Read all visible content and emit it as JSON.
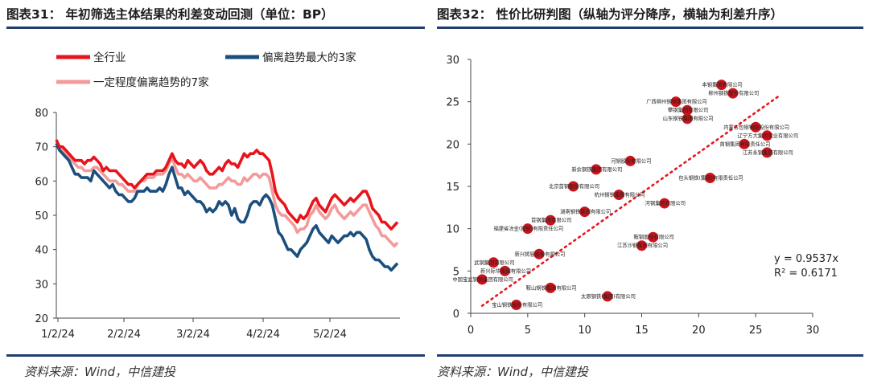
{
  "left": {
    "title": "图表31：  年初筛选主体结果的利差变动回测（单位：BP）",
    "source": "资料来源：Wind，中信建投",
    "chart_data": {
      "type": "line",
      "ylim": [
        20,
        80
      ],
      "yticks": [
        "80",
        "70",
        "60",
        "50",
        "40",
        "30",
        "20"
      ],
      "xticks": [
        "1/2/24",
        "2/2/24",
        "3/2/24",
        "4/2/24",
        "5/2/24"
      ],
      "xlabel": "",
      "ylabel": "",
      "legend_placement": "top",
      "series": [
        {
          "name": "全行业",
          "color": "#e8141c",
          "values": [
            72,
            70,
            70,
            69,
            68,
            67,
            66,
            66,
            66,
            65,
            66,
            66,
            67,
            66,
            65,
            63,
            64,
            63,
            63,
            63,
            62,
            61,
            60,
            59,
            59,
            58,
            59,
            60,
            61,
            62,
            62,
            62,
            63,
            63,
            63,
            64,
            66,
            68,
            66,
            65,
            65,
            64,
            66,
            65,
            64,
            65,
            66,
            65,
            63,
            62,
            62,
            63,
            64,
            63,
            65,
            66,
            65,
            65,
            64,
            66,
            68,
            67,
            68,
            68,
            69,
            68,
            68,
            67,
            66,
            62,
            57,
            55,
            54,
            53,
            51,
            50,
            49,
            48,
            50,
            49,
            50,
            52,
            54,
            55,
            53,
            52,
            51,
            53,
            55,
            56,
            55,
            54,
            53,
            54,
            55,
            54,
            55,
            56,
            57,
            57,
            55,
            52,
            51,
            50,
            48,
            48,
            47,
            46,
            47,
            48
          ]
        },
        {
          "name": "偏离趋势最大的3家",
          "color": "#1b4f7d",
          "values": [
            71,
            69,
            68,
            67,
            66,
            64,
            62,
            62,
            61,
            61,
            61,
            60,
            63,
            62,
            61,
            60,
            59,
            58,
            59,
            57,
            56,
            56,
            55,
            54,
            54,
            55,
            57,
            57,
            57,
            58,
            57,
            57,
            57,
            58,
            57,
            59,
            62,
            64,
            61,
            58,
            58,
            56,
            57,
            56,
            55,
            54,
            54,
            53,
            51,
            52,
            51,
            52,
            54,
            53,
            54,
            53,
            50,
            52,
            49,
            48,
            48,
            50,
            53,
            54,
            54,
            53,
            55,
            56,
            55,
            53,
            49,
            45,
            44,
            42,
            40,
            40,
            39,
            38,
            40,
            41,
            42,
            44,
            46,
            47,
            45,
            44,
            43,
            42,
            44,
            43,
            42,
            43,
            44,
            44,
            45,
            44,
            45,
            45,
            44,
            43,
            40,
            38,
            37,
            37,
            36,
            35,
            35,
            34,
            35,
            36
          ]
        },
        {
          "name": "一定程度偏离趋势的7家",
          "color": "#f49a9a",
          "values": [
            71,
            70,
            69,
            68,
            67,
            66,
            65,
            64,
            64,
            63,
            63,
            63,
            64,
            64,
            63,
            62,
            61,
            60,
            60,
            60,
            59,
            59,
            58,
            57,
            57,
            57,
            59,
            60,
            60,
            61,
            61,
            61,
            62,
            62,
            62,
            63,
            65,
            67,
            64,
            62,
            62,
            61,
            62,
            61,
            60,
            60,
            61,
            60,
            59,
            58,
            58,
            58,
            59,
            59,
            60,
            61,
            60,
            60,
            59,
            59,
            61,
            60,
            61,
            62,
            62,
            61,
            62,
            62,
            61,
            57,
            53,
            51,
            50,
            50,
            49,
            48,
            47,
            45,
            46,
            46,
            47,
            50,
            51,
            53,
            51,
            50,
            49,
            50,
            52,
            53,
            51,
            50,
            49,
            50,
            51,
            50,
            51,
            52,
            53,
            53,
            51,
            49,
            47,
            46,
            44,
            44,
            43,
            42,
            41,
            42
          ]
        }
      ]
    }
  },
  "right": {
    "title": "图表32：  性价比研判图（纵轴为评分降序，横轴为利差升序）",
    "source": "资料来源：Wind，中信建投",
    "chart_data": {
      "type": "scatter",
      "xlim": [
        0,
        30
      ],
      "ylim": [
        0,
        30
      ],
      "xticks": [
        "0",
        "5",
        "10",
        "15",
        "20",
        "25",
        "30"
      ],
      "yticks": [
        "30",
        "25",
        "20",
        "15",
        "10",
        "5",
        "0"
      ],
      "xlabel": "",
      "ylabel": "",
      "grid": false,
      "point_color": "#c8141c",
      "points": [
        {
          "x": 22,
          "y": 27,
          "label": "本钢集团有限公司"
        },
        {
          "x": 23,
          "y": 26,
          "label": "柳州钢铁股份有限公司"
        },
        {
          "x": 18,
          "y": 25,
          "label": "广西柳州钢铁集团有限公司"
        },
        {
          "x": 19,
          "y": 24,
          "label": "攀钢集团有限公司"
        },
        {
          "x": 19,
          "y": 23,
          "label": "山东钢铁集团有限公司"
        },
        {
          "x": 25,
          "y": 22,
          "label": "内蒙古包钢钢联股份有限公司"
        },
        {
          "x": 26,
          "y": 21,
          "label": "辽宁方大集团实业有限公司"
        },
        {
          "x": 24,
          "y": 20,
          "label": "首钢集团有限责任公司"
        },
        {
          "x": 26,
          "y": 19,
          "label": "江苏永钢集团有限公司"
        },
        {
          "x": 14,
          "y": 18,
          "label": "河钢股份有限公司"
        },
        {
          "x": 11,
          "y": 17,
          "label": "新余钢铁集团有限公司"
        },
        {
          "x": 21,
          "y": 16,
          "label": "包头钢铁(集团)有限责任公司"
        },
        {
          "x": 9,
          "y": 15,
          "label": "北京首钢股份有限公司"
        },
        {
          "x": 13,
          "y": 14,
          "label": "杭州钢铁集团有限公司"
        },
        {
          "x": 17,
          "y": 13,
          "label": "河钢集团有限公司"
        },
        {
          "x": 10,
          "y": 12,
          "label": "湖南钢铁集团有限公司"
        },
        {
          "x": 7,
          "y": 11,
          "label": "首钢集团有限公司"
        },
        {
          "x": 5,
          "y": 10,
          "label": "福建省冶金(控股)有限责任公司"
        },
        {
          "x": 16,
          "y": 9,
          "label": "鞍钢股份有限公司"
        },
        {
          "x": 15,
          "y": 8,
          "label": "江苏沙钢集团有限公司"
        },
        {
          "x": 6,
          "y": 7,
          "label": "新兴铸管股份有限公司"
        },
        {
          "x": 2,
          "y": 6,
          "label": "武钢集团有限公司"
        },
        {
          "x": 3,
          "y": 5,
          "label": "新兴际华集团有限公司"
        },
        {
          "x": 1,
          "y": 4,
          "label": "中国宝武钢铁集团有限公司"
        },
        {
          "x": 7,
          "y": 3,
          "label": "鞍山钢铁集团有限公司"
        },
        {
          "x": 12,
          "y": 2,
          "label": "太原钢铁(集团)有限公司"
        },
        {
          "x": 4,
          "y": 1,
          "label": "宝山钢铁股份有限公司"
        }
      ],
      "trendline": {
        "x1": 1,
        "y1": 0.89,
        "x2": 27,
        "y2": 25.64,
        "color": "#e8141c"
      },
      "equation": "y = 0.9537x",
      "r2": "R² = 0.6171"
    }
  }
}
